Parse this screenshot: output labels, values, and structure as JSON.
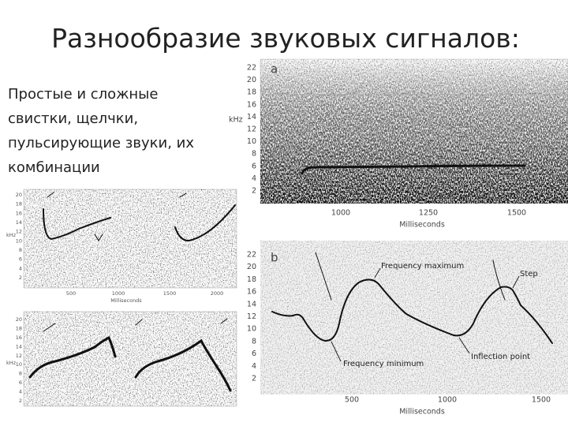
{
  "title": "Разнообразие звуковых сигналов:",
  "body": [
    "Простые и сложные",
    "свистки, щелчки,",
    "пульсирующие звуки, их",
    "комбинации"
  ],
  "panel_a": {
    "label": "a",
    "y_label": "kHz",
    "x_label": "Milliseconds",
    "yticks": [
      "22",
      "20",
      "18",
      "16",
      "14",
      "12",
      "10",
      "8",
      "6",
      "4",
      "2"
    ],
    "xticks": [
      "1000",
      "1250",
      "1500"
    ]
  },
  "panel_b": {
    "label": "b",
    "x_label": "Milliseconds",
    "yticks": [
      "22",
      "20",
      "18",
      "16",
      "14",
      "12",
      "10",
      "8",
      "6",
      "4",
      "2"
    ],
    "xticks": [
      "500",
      "1000",
      "1500"
    ],
    "annotations": [
      "Frequency maximum",
      "Step",
      "Frequency minimum",
      "Inflection point"
    ]
  },
  "panel_c": {
    "y_label": "kHz",
    "x_label": "Milliseconds",
    "yticks": [
      "20",
      "18",
      "16",
      "14",
      "12",
      "10",
      "8",
      "6",
      "4",
      "2"
    ],
    "xticks": [
      "500",
      "1000",
      "1500",
      "2000"
    ]
  },
  "panel_d": {
    "y_label": "kHz",
    "yticks": [
      "20",
      "18",
      "16",
      "14",
      "12",
      "10",
      "8",
      "6",
      "4",
      "2"
    ]
  }
}
